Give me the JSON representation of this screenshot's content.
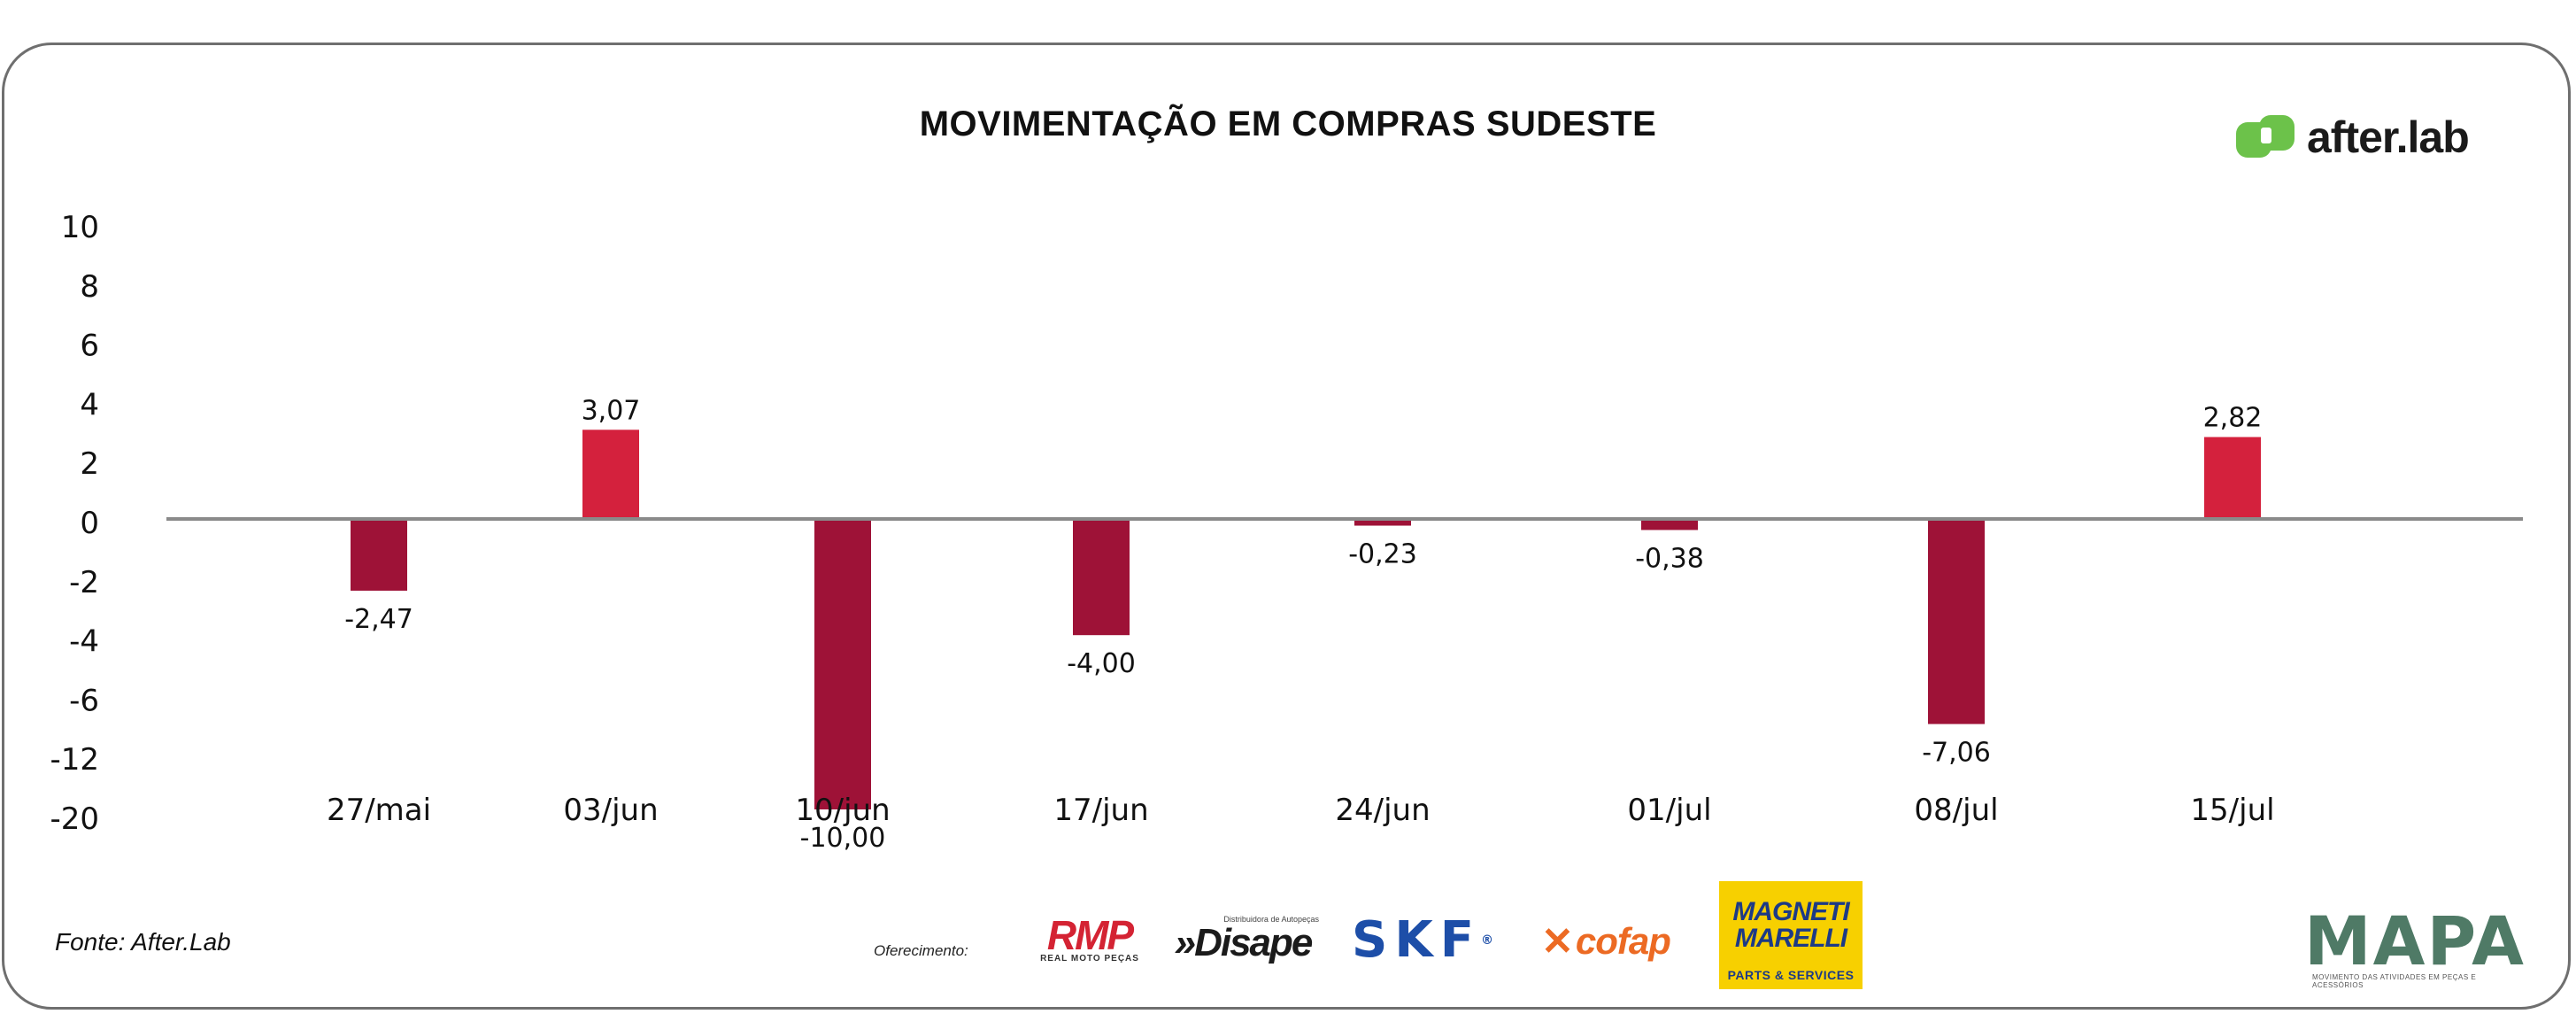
{
  "title": "MOVIMENTAÇÃO EM COMPRAS SUDESTE",
  "brand": {
    "logo_text": "after.lab",
    "logo_color": "#6cc24a"
  },
  "source": "Fonte: After.Lab",
  "sponsors": {
    "label": "Oferecimento:",
    "rmp": {
      "name": "RMP",
      "tagline": "REAL MOTO PEÇAS"
    },
    "disape": {
      "name": "»Disape",
      "tagline": "Distribuidora de Autopeças"
    },
    "skf": {
      "name": "SKF",
      "mark": "®"
    },
    "cofap": {
      "mark": "✕",
      "name": "cofap"
    },
    "magneti": {
      "line1": "MAGNETI",
      "line2": "MARELLI",
      "line3": "PARTS & SERVICES"
    },
    "mapa": {
      "name": "MAPA",
      "tagline": "MOVIMENTO DAS ATIVIDADES EM PEÇAS E ACESSÓRIOS"
    }
  },
  "colors": {
    "positive_bar": "#d4213d",
    "negative_bar": "#9e1237",
    "baseline": "#8a8a8a",
    "text": "#111111"
  },
  "chart_data": {
    "type": "bar",
    "title": "MOVIMENTAÇÃO EM COMPRAS SUDESTE",
    "categories": [
      "27/mai",
      "03/jun",
      "10/jun",
      "17/jun",
      "24/jun",
      "01/jul",
      "08/jul",
      "15/jul"
    ],
    "values": [
      -2.47,
      3.07,
      -10.0,
      -4.0,
      -0.23,
      -0.38,
      -7.06,
      2.82
    ],
    "data_labels": [
      "-2,47",
      "3,07",
      "-10,00",
      "-4,00",
      "-0,23",
      "-0,38",
      "-7,06",
      "2,82"
    ],
    "y_ticks": [
      "10",
      "8",
      "6",
      "4",
      "2",
      "0",
      "-2",
      "-4",
      "-6",
      "-12",
      "-20"
    ],
    "ylim": [
      -20,
      10
    ],
    "grid": false,
    "legend": "none",
    "xlabel": "",
    "ylabel": ""
  }
}
